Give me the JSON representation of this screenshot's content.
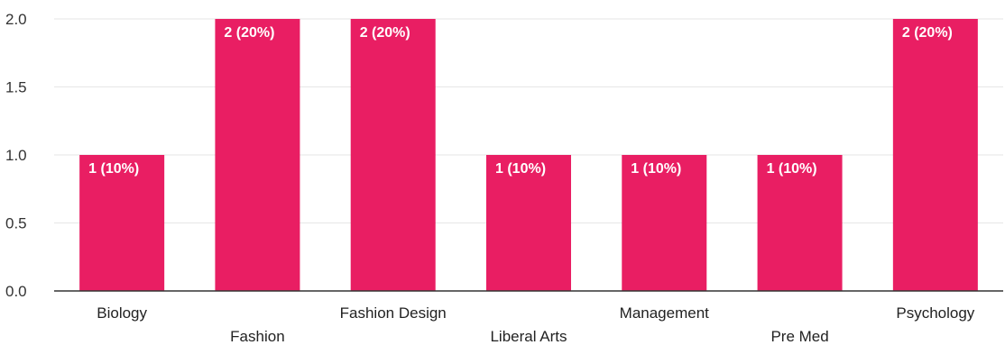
{
  "chart_data": {
    "type": "bar",
    "categories": [
      "Biology",
      "Fashion",
      "Fashion Design",
      "Liberal Arts",
      "Management",
      "Pre Med",
      "Psychology"
    ],
    "values": [
      1,
      2,
      2,
      1,
      1,
      1,
      2
    ],
    "data_labels": [
      "1 (10%)",
      "2 (20%)",
      "2 (20%)",
      "1 (10%)",
      "1 (10%)",
      "1 (10%)",
      "2 (20%)"
    ],
    "ylim": [
      0,
      2.0
    ],
    "yticks": [
      "0.0",
      "0.5",
      "1.0",
      "1.5",
      "2.0"
    ],
    "grid": true,
    "legend": "none",
    "colors": {
      "bar": "#e91e63",
      "grid": "#e6e6e6",
      "axis": "#333333",
      "label": "#ffffff"
    }
  }
}
